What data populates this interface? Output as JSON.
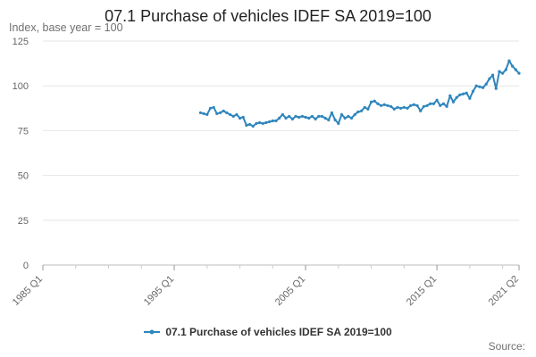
{
  "chart_data": {
    "type": "line",
    "title": "07.1 Purchase of vehicles IDEF SA 2019=100",
    "ylabel": "Index, base year = 100",
    "xlabel": "",
    "x_tick_labels": [
      "1985 Q1",
      "1995 Q1",
      "2005 Q1",
      "2015 Q1",
      "2021 Q2"
    ],
    "x_range": [
      "1985 Q1",
      "2021 Q2"
    ],
    "ylim": [
      0,
      125
    ],
    "y_ticks": [
      0,
      25,
      50,
      75,
      100,
      125
    ],
    "grid": true,
    "legend_position": "bottom",
    "series": [
      {
        "name": "07.1 Purchase of vehicles IDEF SA 2019=100",
        "color": "#2f86bd",
        "marker": "circle",
        "points": [
          [
            "1997 Q1",
            85
          ],
          [
            "1997 Q2",
            84.5
          ],
          [
            "1997 Q3",
            84
          ],
          [
            "1997 Q4",
            87.5
          ],
          [
            "1998 Q1",
            88
          ],
          [
            "1998 Q2",
            84.5
          ],
          [
            "1998 Q3",
            85
          ],
          [
            "1998 Q4",
            86
          ],
          [
            "1999 Q1",
            85
          ],
          [
            "1999 Q2",
            84
          ],
          [
            "1999 Q3",
            83
          ],
          [
            "1999 Q4",
            84
          ],
          [
            "2000 Q1",
            82
          ],
          [
            "2000 Q2",
            82.5
          ],
          [
            "2000 Q3",
            78
          ],
          [
            "2000 Q4",
            78.5
          ],
          [
            "2001 Q1",
            77.5
          ],
          [
            "2001 Q2",
            79
          ],
          [
            "2001 Q3",
            79.5
          ],
          [
            "2001 Q4",
            79
          ],
          [
            "2002 Q1",
            79.5
          ],
          [
            "2002 Q2",
            80
          ],
          [
            "2002 Q3",
            80.5
          ],
          [
            "2002 Q4",
            80.5
          ],
          [
            "2003 Q1",
            82
          ],
          [
            "2003 Q2",
            84
          ],
          [
            "2003 Q3",
            82
          ],
          [
            "2003 Q4",
            83
          ],
          [
            "2004 Q1",
            81.5
          ],
          [
            "2004 Q2",
            83
          ],
          [
            "2004 Q3",
            82.5
          ],
          [
            "2004 Q4",
            83
          ],
          [
            "2005 Q1",
            82.5
          ],
          [
            "2005 Q2",
            82
          ],
          [
            "2005 Q3",
            83
          ],
          [
            "2005 Q4",
            81.5
          ],
          [
            "2006 Q1",
            83
          ],
          [
            "2006 Q2",
            83
          ],
          [
            "2006 Q3",
            82
          ],
          [
            "2006 Q4",
            81
          ],
          [
            "2007 Q1",
            85
          ],
          [
            "2007 Q2",
            81
          ],
          [
            "2007 Q3",
            79
          ],
          [
            "2007 Q4",
            84
          ],
          [
            "2008 Q1",
            82
          ],
          [
            "2008 Q2",
            83
          ],
          [
            "2008 Q3",
            82
          ],
          [
            "2008 Q4",
            84
          ],
          [
            "2009 Q1",
            85.5
          ],
          [
            "2009 Q2",
            86
          ],
          [
            "2009 Q3",
            88
          ],
          [
            "2009 Q4",
            87
          ],
          [
            "2010 Q1",
            91
          ],
          [
            "2010 Q2",
            91.5
          ],
          [
            "2010 Q3",
            90
          ],
          [
            "2010 Q4",
            89
          ],
          [
            "2011 Q1",
            89.5
          ],
          [
            "2011 Q2",
            89
          ],
          [
            "2011 Q3",
            88.5
          ],
          [
            "2011 Q4",
            87
          ],
          [
            "2012 Q1",
            88
          ],
          [
            "2012 Q2",
            87.5
          ],
          [
            "2012 Q3",
            88
          ],
          [
            "2012 Q4",
            87.5
          ],
          [
            "2013 Q1",
            89
          ],
          [
            "2013 Q2",
            89.5
          ],
          [
            "2013 Q3",
            89
          ],
          [
            "2013 Q4",
            86
          ],
          [
            "2014 Q1",
            88.5
          ],
          [
            "2014 Q2",
            89
          ],
          [
            "2014 Q3",
            90
          ],
          [
            "2014 Q4",
            90
          ],
          [
            "2015 Q1",
            92
          ],
          [
            "2015 Q2",
            89
          ],
          [
            "2015 Q3",
            90
          ],
          [
            "2015 Q4",
            88.5
          ],
          [
            "2016 Q1",
            94.5
          ],
          [
            "2016 Q2",
            91
          ],
          [
            "2016 Q3",
            93.5
          ],
          [
            "2016 Q4",
            95
          ],
          [
            "2017 Q1",
            95.5
          ],
          [
            "2017 Q2",
            96
          ],
          [
            "2017 Q3",
            93
          ],
          [
            "2017 Q4",
            97
          ],
          [
            "2018 Q1",
            100
          ],
          [
            "2018 Q2",
            99.5
          ],
          [
            "2018 Q3",
            99
          ],
          [
            "2018 Q4",
            101
          ],
          [
            "2019 Q1",
            104
          ],
          [
            "2019 Q2",
            106
          ],
          [
            "2019 Q3",
            98.5
          ],
          [
            "2019 Q4",
            108
          ],
          [
            "2020 Q1",
            107
          ],
          [
            "2020 Q2",
            109
          ],
          [
            "2020 Q3",
            114
          ],
          [
            "2020 Q4",
            111
          ],
          [
            "2021 Q1",
            109
          ],
          [
            "2021 Q2",
            107
          ]
        ]
      }
    ]
  },
  "footer": {
    "credits": "Source:"
  }
}
